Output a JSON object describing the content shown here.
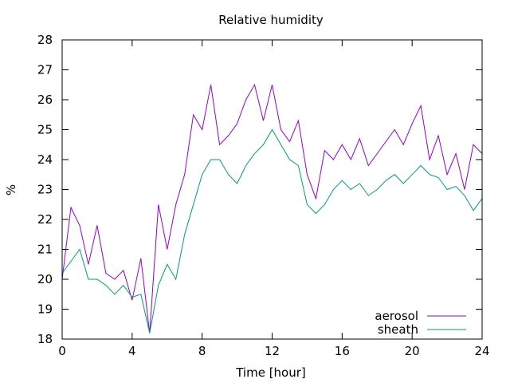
{
  "chart_data": {
    "type": "line",
    "title": "Relative humidity",
    "xlabel": "Time [hour]",
    "ylabel": "%",
    "xlim": [
      0,
      24
    ],
    "ylim": [
      18,
      28
    ],
    "xticks": [
      0,
      4,
      8,
      12,
      16,
      20,
      24
    ],
    "yticks": [
      18,
      19,
      20,
      21,
      22,
      23,
      24,
      25,
      26,
      27,
      28
    ],
    "grid": false,
    "legend_position": "bottom-right",
    "series": [
      {
        "name": "aerosol",
        "color": "#9400d3",
        "x": [
          0.0,
          0.5,
          1.0,
          1.5,
          2.0,
          2.5,
          3.0,
          3.5,
          4.0,
          4.5,
          5.0,
          5.5,
          6.0,
          6.5,
          7.0,
          7.5,
          8.0,
          8.5,
          9.0,
          9.5,
          10.0,
          10.5,
          11.0,
          11.5,
          12.0,
          12.5,
          13.0,
          13.5,
          14.0,
          14.5,
          15.0,
          15.5,
          16.0,
          16.5,
          17.0,
          17.5,
          18.0,
          18.5,
          19.0,
          19.5,
          20.0,
          20.5,
          21.0,
          21.5,
          22.0,
          22.5,
          23.0,
          23.5,
          24.0
        ],
        "values": [
          20.0,
          22.4,
          21.8,
          20.5,
          21.8,
          20.2,
          20.0,
          20.3,
          19.3,
          20.7,
          18.2,
          22.5,
          21.0,
          22.5,
          23.5,
          25.5,
          25.0,
          26.5,
          24.5,
          24.8,
          25.2,
          26.0,
          26.5,
          25.3,
          26.5,
          25.0,
          24.6,
          25.3,
          23.5,
          22.7,
          24.3,
          24.0,
          24.5,
          24.0,
          24.7,
          23.8,
          24.2,
          24.6,
          25.0,
          24.5,
          25.2,
          25.8,
          24.0,
          24.8,
          23.5,
          24.2,
          23.0,
          24.5,
          24.2
        ]
      },
      {
        "name": "sheath",
        "color": "#009e73",
        "x": [
          0.0,
          0.5,
          1.0,
          1.5,
          2.0,
          2.5,
          3.0,
          3.5,
          4.0,
          4.5,
          5.0,
          5.5,
          6.0,
          6.5,
          7.0,
          7.5,
          8.0,
          8.5,
          9.0,
          9.5,
          10.0,
          10.5,
          11.0,
          11.5,
          12.0,
          12.5,
          13.0,
          13.5,
          14.0,
          14.5,
          15.0,
          15.5,
          16.0,
          16.5,
          17.0,
          17.5,
          18.0,
          18.5,
          19.0,
          19.5,
          20.0,
          20.5,
          21.0,
          21.5,
          22.0,
          22.5,
          23.0,
          23.5,
          24.0
        ],
        "values": [
          20.2,
          20.6,
          21.0,
          20.0,
          20.0,
          19.8,
          19.5,
          19.8,
          19.4,
          19.5,
          18.2,
          19.8,
          20.5,
          20.0,
          21.5,
          22.5,
          23.5,
          24.0,
          24.0,
          23.5,
          23.2,
          23.8,
          24.2,
          24.5,
          25.0,
          24.5,
          24.0,
          23.8,
          22.5,
          22.2,
          22.5,
          23.0,
          23.3,
          23.0,
          23.2,
          22.8,
          23.0,
          23.3,
          23.5,
          23.2,
          23.5,
          23.8,
          23.5,
          23.4,
          23.0,
          23.1,
          22.8,
          22.3,
          22.7
        ]
      }
    ]
  }
}
